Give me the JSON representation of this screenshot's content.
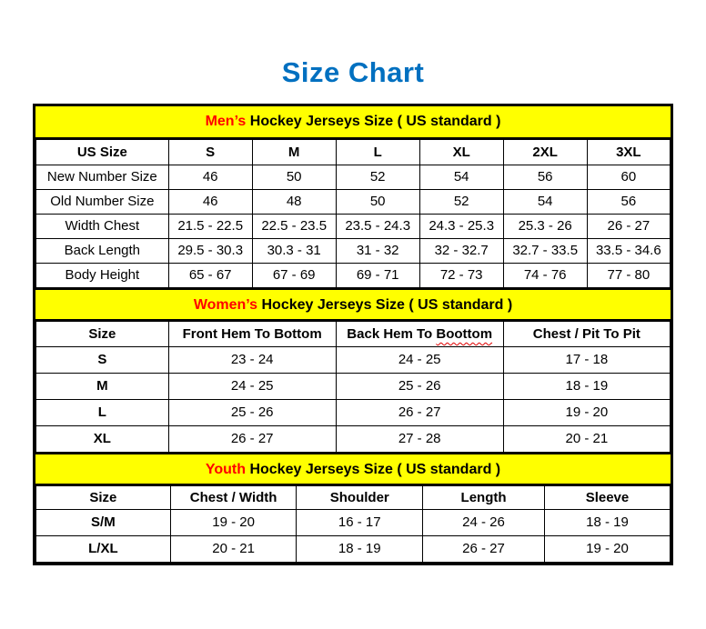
{
  "title": "Size Chart",
  "colors": {
    "title_blue": "#0070C0",
    "accent_red": "#FF0000",
    "banner_yellow": "#FFFF00",
    "border_black": "#000000"
  },
  "chart_data": [
    {
      "type": "table",
      "id": "mens",
      "banner": {
        "accent": "Men’s",
        "rest": " Hockey Jerseys Size ( US standard )"
      },
      "columns": [
        "US Size",
        "S",
        "M",
        "L",
        "XL",
        "2XL",
        "3XL"
      ],
      "rows": [
        [
          "New Number Size",
          "46",
          "50",
          "52",
          "54",
          "56",
          "60"
        ],
        [
          "Old Number Size",
          "46",
          "48",
          "50",
          "52",
          "54",
          "56"
        ],
        [
          "Width Chest",
          "21.5 - 22.5",
          "22.5 - 23.5",
          "23.5 - 24.3",
          "24.3 - 25.3",
          "25.3 - 26",
          "26 - 27"
        ],
        [
          "Back Length",
          "29.5 - 30.3",
          "30.3 - 31",
          "31 - 32",
          "32 - 32.7",
          "32.7 - 33.5",
          "33.5 - 34.6"
        ],
        [
          "Body Height",
          "65 - 67",
          "67 - 69",
          "69 - 71",
          "72 - 73",
          "74 - 76",
          "77 - 80"
        ]
      ],
      "row_labels_bold": false,
      "col_widths_pct": [
        20.9,
        13.2,
        13.2,
        13.2,
        13.2,
        13.2,
        13.1
      ]
    },
    {
      "type": "table",
      "id": "womens",
      "banner": {
        "accent": "Women’s",
        "rest": " Hockey Jerseys Size ( US standard )"
      },
      "columns": [
        "Size",
        "Front Hem To Bottom",
        "Back Hem To Boottom",
        "Chest / Pit To Pit"
      ],
      "squiggle_word": "Boottom",
      "rows": [
        [
          "S",
          "23 - 24",
          "24 - 25",
          "17 - 18"
        ],
        [
          "M",
          "24 - 25",
          "25 - 26",
          "18 - 19"
        ],
        [
          "L",
          "25 - 26",
          "26 - 27",
          "19 - 20"
        ],
        [
          "XL",
          "26 - 27",
          "27 - 28",
          "20 - 21"
        ]
      ],
      "row_labels_bold": true,
      "col_widths_pct": [
        20.9,
        26.4,
        26.4,
        26.3
      ]
    },
    {
      "type": "table",
      "id": "youth",
      "banner": {
        "accent": "Youth",
        "rest": " Hockey Jerseys Size ( US standard )"
      },
      "columns": [
        "Size",
        "Chest / Width",
        "Shoulder",
        "Length",
        "Sleeve"
      ],
      "rows": [
        [
          "S/M",
          "19 - 20",
          "16 - 17",
          "24 - 26",
          "18 - 19"
        ],
        [
          "L/XL",
          "20 - 21",
          "18 - 19",
          "26 - 27",
          "19 - 20"
        ]
      ],
      "row_labels_bold": true,
      "col_widths_pct": [
        21.2,
        19.9,
        19.9,
        19.2,
        19.8
      ]
    }
  ]
}
